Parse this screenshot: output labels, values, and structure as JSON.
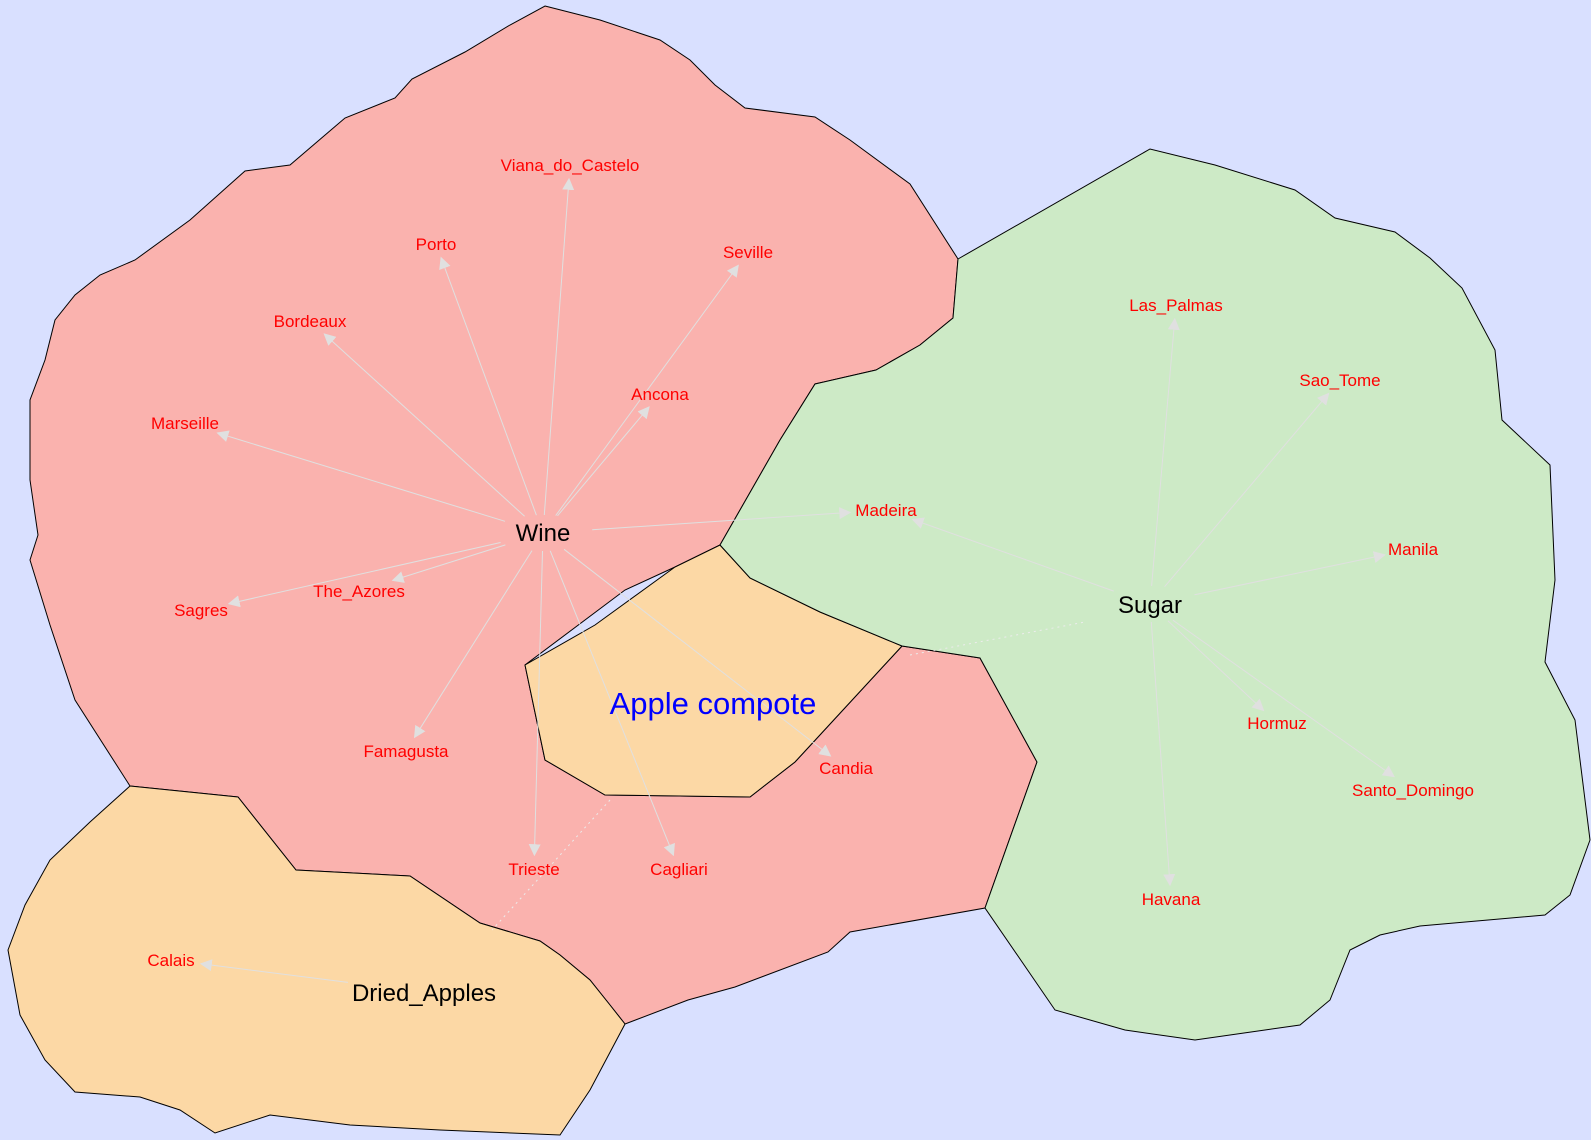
{
  "colors": {
    "background": "#d9e0ff",
    "wine_region": "#fab2ae",
    "sugar_region": "#cdeac6",
    "apple_region": "#fcd8a5",
    "hub_text": "#000000",
    "leaf_text": "#ff0000",
    "title_text": "#0000ff",
    "edge": "#e0e0e0"
  },
  "title": "Apple compote",
  "hubs": {
    "wine": "Wine",
    "sugar": "Sugar",
    "dried_apples": "Dried_Apples"
  },
  "leaves": {
    "viana": "Viana_do_Castelo",
    "porto": "Porto",
    "seville": "Seville",
    "bordeaux": "Bordeaux",
    "ancona": "Ancona",
    "marseille": "Marseille",
    "madeira": "Madeira",
    "azores": "The_Azores",
    "sagres": "Sagres",
    "famagusta": "Famagusta",
    "candia": "Candia",
    "trieste": "Trieste",
    "cagliari": "Cagliari",
    "calais": "Calais",
    "las_palmas": "Las_Palmas",
    "sao_tome": "Sao_Tome",
    "manila": "Manila",
    "hormuz": "Hormuz",
    "santo_domingo": "Santo_Domingo",
    "havana": "Havana"
  },
  "edges": [
    {
      "from": "wine",
      "to": "viana"
    },
    {
      "from": "wine",
      "to": "porto"
    },
    {
      "from": "wine",
      "to": "seville"
    },
    {
      "from": "wine",
      "to": "bordeaux"
    },
    {
      "from": "wine",
      "to": "ancona"
    },
    {
      "from": "wine",
      "to": "marseille"
    },
    {
      "from": "wine",
      "to": "madeira"
    },
    {
      "from": "wine",
      "to": "azores"
    },
    {
      "from": "wine",
      "to": "sagres"
    },
    {
      "from": "wine",
      "to": "famagusta"
    },
    {
      "from": "wine",
      "to": "candia"
    },
    {
      "from": "wine",
      "to": "trieste"
    },
    {
      "from": "wine",
      "to": "cagliari"
    },
    {
      "from": "dried_apples",
      "to": "calais"
    },
    {
      "from": "sugar",
      "to": "las_palmas"
    },
    {
      "from": "sugar",
      "to": "sao_tome"
    },
    {
      "from": "sugar",
      "to": "manila"
    },
    {
      "from": "sugar",
      "to": "madeira"
    },
    {
      "from": "sugar",
      "to": "hormuz"
    },
    {
      "from": "sugar",
      "to": "santo_domingo"
    },
    {
      "from": "sugar",
      "to": "havana"
    }
  ]
}
